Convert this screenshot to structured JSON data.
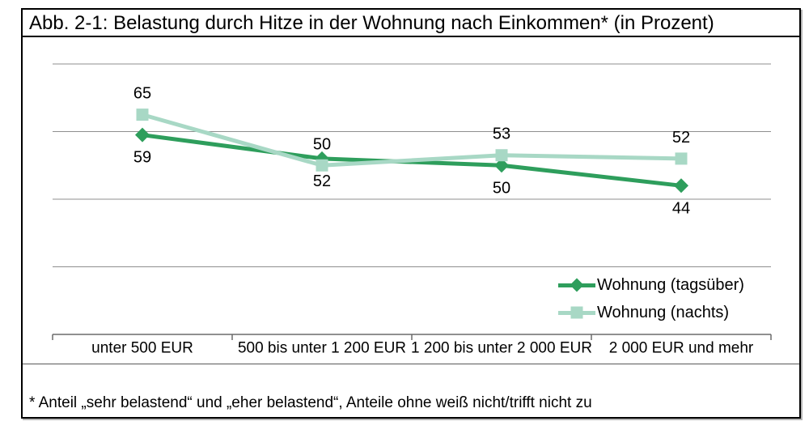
{
  "figure": {
    "title": "Abb. 2-1: Belastung durch Hitze in der Wohnung nach Einkommen* (in Prozent)",
    "footnote": "* Anteil „sehr belastend“ und „eher belastend“, Anteile ohne weiß nicht/trifft nicht zu"
  },
  "colors": {
    "series_tagsueber": "#2E9E5C",
    "series_nachts": "#A8D8C5",
    "gridline": "#8f8f8f",
    "axis": "#6b6b6b",
    "label_text": "#000000",
    "frame_border": "#000000"
  },
  "chart_data": {
    "type": "line",
    "title": "Abb. 2-1: Belastung durch Hitze in der Wohnung nach Einkommen* (in Prozent)",
    "categories": [
      "unter 500 EUR",
      "500 bis unter 1 200 EUR",
      "1 200 bis unter 2 000 EUR",
      "2 000 EUR und mehr"
    ],
    "series": [
      {
        "name": "Wohnung (tagsüber)",
        "values": [
          59,
          52,
          50,
          44
        ],
        "color": "#2E9E5C",
        "marker": "diamond",
        "label_position": "below"
      },
      {
        "name": "Wohnung (nachts)",
        "values": [
          65,
          50,
          53,
          52
        ],
        "color": "#A8D8C5",
        "marker": "square",
        "label_position": "above"
      }
    ],
    "xlabel": "",
    "ylabel": "",
    "ylim": [
      0,
      90
    ],
    "gridline_values": [
      0,
      20,
      40,
      60,
      80
    ],
    "grid": true,
    "y_axis_labels_visible": false,
    "data_labels_visible": true,
    "legend_position": "inside-right"
  }
}
